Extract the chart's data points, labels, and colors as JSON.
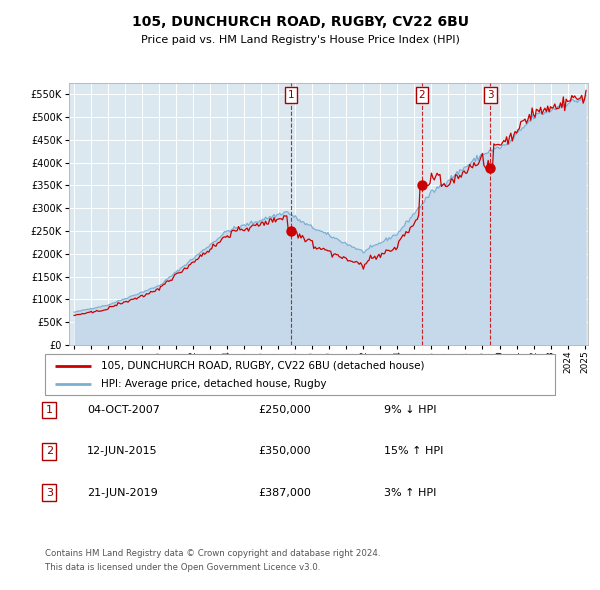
{
  "title": "105, DUNCHURCH ROAD, RUGBY, CV22 6BU",
  "subtitle": "Price paid vs. HM Land Registry's House Price Index (HPI)",
  "legend_line1": "105, DUNCHURCH ROAD, RUGBY, CV22 6BU (detached house)",
  "legend_line2": "HPI: Average price, detached house, Rugby",
  "footer1": "Contains HM Land Registry data © Crown copyright and database right 2024.",
  "footer2": "This data is licensed under the Open Government Licence v3.0.",
  "sale_color": "#cc0000",
  "hpi_color": "#7ab0d4",
  "hpi_fill_color": "#c5d9ea",
  "plot_bg": "#dce8f0",
  "transactions": [
    {
      "num": 1,
      "date": "04-OCT-2007",
      "price": 250000,
      "pct": "9%",
      "dir": "↓"
    },
    {
      "num": 2,
      "date": "12-JUN-2015",
      "price": 350000,
      "pct": "15%",
      "dir": "↑"
    },
    {
      "num": 3,
      "date": "21-JUN-2019",
      "price": 387000,
      "pct": "3%",
      "dir": "↑"
    }
  ],
  "transaction_dates_decimal": [
    2007.757,
    2015.443,
    2019.468
  ],
  "transaction_prices": [
    250000,
    350000,
    387000
  ],
  "ylim": [
    0,
    575000
  ],
  "yticks": [
    0,
    50000,
    100000,
    150000,
    200000,
    250000,
    300000,
    350000,
    400000,
    450000,
    500000,
    550000
  ],
  "start_year": 1995,
  "end_year": 2025
}
